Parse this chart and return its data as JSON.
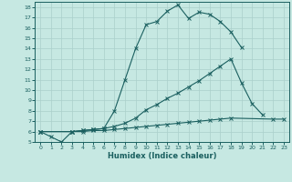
{
  "xlabel": "Humidex (Indice chaleur)",
  "bg_color": "#c6e8e2",
  "grid_color": "#aacfca",
  "line_color": "#1a5f5f",
  "xlim": [
    -0.5,
    23.5
  ],
  "ylim": [
    5,
    18.5
  ],
  "xticks": [
    0,
    1,
    2,
    3,
    4,
    5,
    6,
    7,
    8,
    9,
    10,
    11,
    12,
    13,
    14,
    15,
    16,
    17,
    18,
    19,
    20,
    21,
    22,
    23
  ],
  "yticks": [
    5,
    6,
    7,
    8,
    9,
    10,
    11,
    12,
    13,
    14,
    15,
    16,
    17,
    18
  ],
  "line1_x": [
    0,
    1,
    2,
    3,
    4,
    5,
    6,
    7,
    8,
    9,
    10,
    11,
    12,
    13,
    14,
    15,
    16,
    17,
    18,
    19
  ],
  "line1_y": [
    6.0,
    5.5,
    5.0,
    6.0,
    6.1,
    6.2,
    6.3,
    8.0,
    11.0,
    14.0,
    16.3,
    16.6,
    17.6,
    18.2,
    16.9,
    17.5,
    17.3,
    16.6,
    15.6,
    14.1
  ],
  "line2_x": [
    0,
    3,
    4,
    5,
    6,
    7,
    8,
    9,
    10,
    11,
    12,
    13,
    14,
    15,
    16,
    17,
    18,
    19,
    20,
    21
  ],
  "line2_y": [
    6.0,
    6.0,
    6.1,
    6.2,
    6.3,
    6.5,
    6.8,
    7.3,
    8.1,
    8.6,
    9.2,
    9.7,
    10.3,
    10.9,
    11.6,
    12.3,
    13.0,
    10.7,
    8.7,
    7.6
  ],
  "line3_x": [
    0,
    3,
    4,
    5,
    6,
    7,
    8,
    9,
    10,
    11,
    12,
    13,
    14,
    15,
    16,
    17,
    18,
    22,
    23
  ],
  "line3_y": [
    6.0,
    6.0,
    6.0,
    6.1,
    6.1,
    6.2,
    6.3,
    6.4,
    6.5,
    6.6,
    6.7,
    6.8,
    6.9,
    7.0,
    7.1,
    7.2,
    7.3,
    7.2,
    7.2
  ]
}
